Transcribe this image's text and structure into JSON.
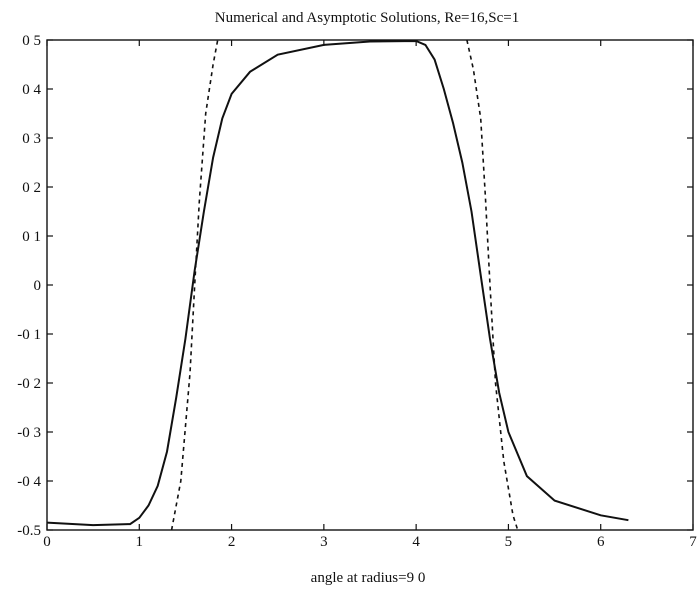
{
  "chart_data": {
    "type": "line",
    "title": "Numerical and Asymptotic Solutions, Re=16,Sc=1",
    "xlabel": "angle at radius=9 0",
    "ylabel": "",
    "xlim": [
      0,
      7
    ],
    "ylim": [
      -0.5,
      0.5
    ],
    "x_ticks": [
      {
        "value": 0,
        "label": "0"
      },
      {
        "value": 1,
        "label": "1"
      },
      {
        "value": 2,
        "label": "2"
      },
      {
        "value": 3,
        "label": "3"
      },
      {
        "value": 4,
        "label": "4"
      },
      {
        "value": 5,
        "label": "5"
      },
      {
        "value": 6,
        "label": "6"
      },
      {
        "value": 7,
        "label": "7"
      }
    ],
    "y_ticks": [
      {
        "value": 0.5,
        "label": "0 5"
      },
      {
        "value": 0.4,
        "label": "0 4"
      },
      {
        "value": 0.3,
        "label": "0 3"
      },
      {
        "value": 0.2,
        "label": "0 2"
      },
      {
        "value": 0.1,
        "label": "0 1"
      },
      {
        "value": 0,
        "label": "0"
      },
      {
        "value": -0.1,
        "label": "-0 1"
      },
      {
        "value": -0.2,
        "label": "-0 2"
      },
      {
        "value": -0.3,
        "label": "-0 3"
      },
      {
        "value": -0.4,
        "label": "-0 4"
      },
      {
        "value": -0.5,
        "label": "-0.5"
      }
    ],
    "grid": false,
    "series": [
      {
        "style": "solid",
        "points": [
          [
            0,
            -0.485
          ],
          [
            0.5,
            -0.49
          ],
          [
            0.9,
            -0.488
          ],
          [
            1.0,
            -0.475
          ],
          [
            1.1,
            -0.45
          ],
          [
            1.2,
            -0.41
          ],
          [
            1.3,
            -0.34
          ],
          [
            1.4,
            -0.23
          ],
          [
            1.5,
            -0.11
          ],
          [
            1.6,
            0.03
          ],
          [
            1.7,
            0.15
          ],
          [
            1.8,
            0.26
          ],
          [
            1.9,
            0.34
          ],
          [
            2.0,
            0.39
          ],
          [
            2.2,
            0.435
          ],
          [
            2.5,
            0.47
          ],
          [
            3.0,
            0.49
          ],
          [
            3.5,
            0.497
          ],
          [
            4.0,
            0.498
          ],
          [
            4.1,
            0.49
          ],
          [
            4.2,
            0.46
          ],
          [
            4.3,
            0.4
          ],
          [
            4.4,
            0.33
          ],
          [
            4.5,
            0.25
          ],
          [
            4.6,
            0.15
          ],
          [
            4.7,
            0.02
          ],
          [
            4.8,
            -0.11
          ],
          [
            4.9,
            -0.22
          ],
          [
            5.0,
            -0.3
          ],
          [
            5.2,
            -0.39
          ],
          [
            5.5,
            -0.44
          ],
          [
            6.0,
            -0.47
          ],
          [
            6.3,
            -0.48
          ]
        ]
      },
      {
        "style": "dashed",
        "points": [
          [
            1.35,
            -0.5
          ],
          [
            1.45,
            -0.4
          ],
          [
            1.55,
            -0.18
          ],
          [
            1.6,
            0.0
          ],
          [
            1.65,
            0.17
          ],
          [
            1.72,
            0.35
          ],
          [
            1.8,
            0.45
          ],
          [
            1.85,
            0.5
          ]
        ]
      },
      {
        "style": "dashed",
        "points": [
          [
            4.55,
            0.5
          ],
          [
            4.62,
            0.44
          ],
          [
            4.7,
            0.34
          ],
          [
            4.75,
            0.18
          ],
          [
            4.8,
            0.0
          ],
          [
            4.86,
            -0.2
          ],
          [
            4.95,
            -0.36
          ],
          [
            5.05,
            -0.47
          ],
          [
            5.1,
            -0.5
          ]
        ]
      }
    ]
  }
}
